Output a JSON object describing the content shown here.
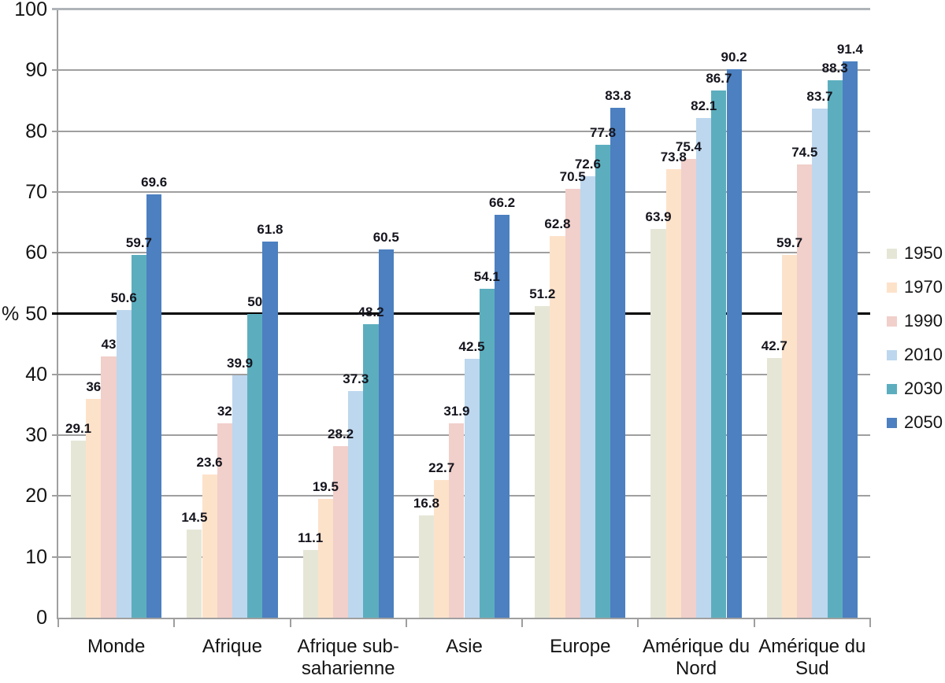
{
  "chart_data": {
    "type": "bar",
    "title": "",
    "xlabel": "",
    "ylabel": "%",
    "ylim": [
      0,
      100
    ],
    "yticks": [
      0,
      10,
      20,
      30,
      40,
      50,
      60,
      70,
      80,
      90,
      100
    ],
    "reference_line": 50,
    "grid": true,
    "legend_position": "right",
    "value_labels": true,
    "categories": [
      "Monde",
      "Afrique",
      "Afrique sub-saharienne",
      "Asie",
      "Europe",
      "Amérique du Nord",
      "Amérique du Sud"
    ],
    "series": [
      {
        "name": "1950",
        "color": "#e6e6d7",
        "values": [
          29.1,
          14.5,
          11.1,
          16.8,
          51.2,
          63.9,
          42.7
        ]
      },
      {
        "name": "1970",
        "color": "#fde2ca",
        "values": [
          36,
          23.6,
          19.5,
          22.7,
          62.8,
          73.8,
          59.7
        ]
      },
      {
        "name": "1990",
        "color": "#f1cfca",
        "values": [
          43,
          32,
          28.2,
          31.9,
          70.5,
          75.4,
          74.5
        ]
      },
      {
        "name": "2010",
        "color": "#bdd7ee",
        "values": [
          50.6,
          39.9,
          37.3,
          42.5,
          72.6,
          82.1,
          83.7
        ]
      },
      {
        "name": "2030",
        "color": "#5caebe",
        "values": [
          59.7,
          50,
          48.2,
          54.1,
          77.8,
          86.7,
          88.3
        ]
      },
      {
        "name": "2050",
        "color": "#4c80c0",
        "values": [
          69.6,
          61.8,
          60.5,
          66.2,
          83.8,
          90.2,
          91.4
        ]
      }
    ]
  },
  "colors": {
    "gridline": "#9f9f9f",
    "axis": "#9f9f9f",
    "reference_line": "#000000",
    "text": "#141414"
  }
}
